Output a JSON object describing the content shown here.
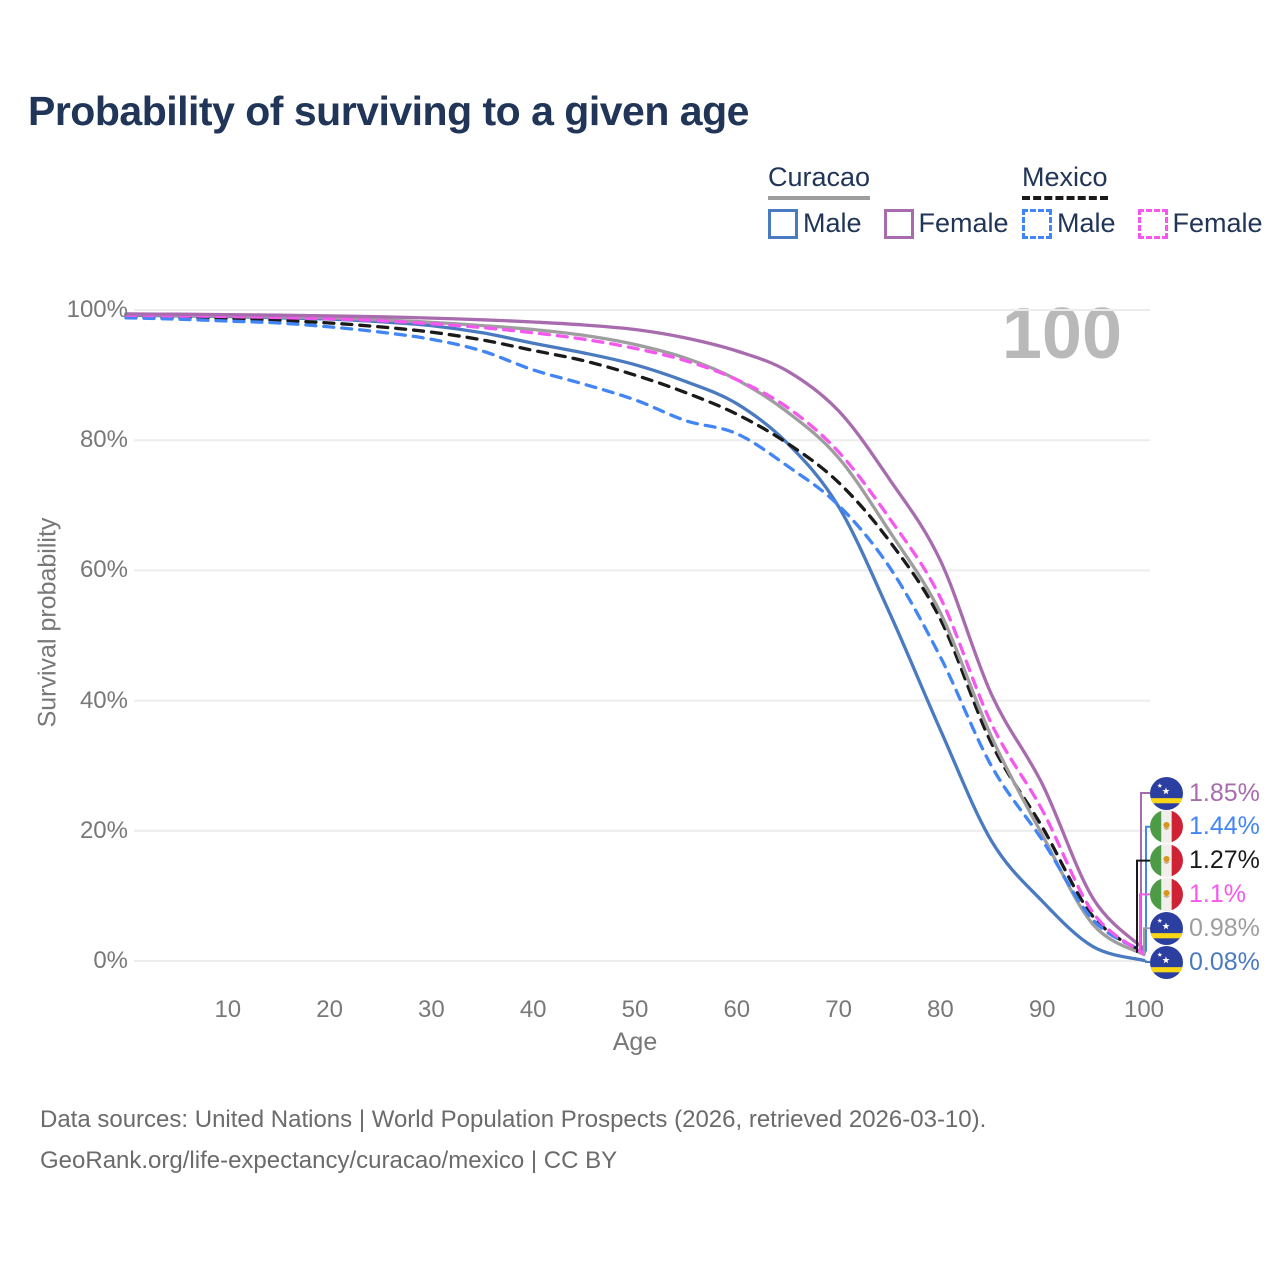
{
  "header": {
    "title": "Probability of surviving to a given age"
  },
  "legend": {
    "groups": [
      {
        "label": "Curacao",
        "underline_style": "solid",
        "underline_color": "#9e9e9e",
        "items": [
          {
            "label": "Male",
            "color": "#4a7abf",
            "dash": false
          },
          {
            "label": "Female",
            "color": "#a86bae",
            "dash": false
          }
        ]
      },
      {
        "label": "Mexico",
        "underline_style": "dashed",
        "underline_color": "#1a1a1a",
        "items": [
          {
            "label": "Male",
            "color": "#4285f4",
            "dash": true
          },
          {
            "label": "Female",
            "color": "#f558ee",
            "dash": true
          }
        ]
      }
    ]
  },
  "chart_data": {
    "type": "line",
    "title": "Probability of surviving to a given age",
    "xlabel": "Age",
    "ylabel": "Survival probability",
    "watermark": "100",
    "xlim": [
      0,
      100
    ],
    "ylim": [
      0,
      100
    ],
    "grid": "horizontal",
    "x_ticks": [
      10,
      20,
      30,
      40,
      50,
      60,
      70,
      80,
      90,
      100
    ],
    "y_ticks": [
      0,
      20,
      40,
      60,
      80,
      100
    ],
    "y_tick_labels": [
      "0%",
      "20%",
      "40%",
      "60%",
      "80%",
      "100%"
    ],
    "x": [
      0,
      5,
      10,
      15,
      20,
      25,
      30,
      35,
      40,
      45,
      50,
      55,
      60,
      65,
      70,
      75,
      80,
      85,
      90,
      95,
      100
    ],
    "series": [
      {
        "id": "curacao-male",
        "name": "Curacao Male",
        "country": "curacao",
        "color": "#4a7abf",
        "dash": false,
        "end_label": "0.08%",
        "values": [
          99.2,
          99.1,
          99.0,
          98.8,
          98.6,
          98.2,
          97.6,
          96.5,
          94.9,
          93.4,
          91.6,
          89.0,
          85.6,
          79.5,
          69.8,
          53.5,
          35.5,
          18.5,
          9.2,
          2.2,
          0.08
        ]
      },
      {
        "id": "mexico-total",
        "name": "Mexico (both sexes)",
        "country": "mexico",
        "color": "#1a1a1a",
        "dash": true,
        "end_label": "1.27%",
        "values": [
          99.0,
          98.85,
          98.7,
          98.4,
          98.0,
          97.4,
          96.6,
          95.4,
          93.8,
          92.2,
          90.0,
          87.3,
          84.0,
          79.5,
          73.5,
          64.5,
          52.5,
          33.5,
          20.6,
          6.8,
          1.27
        ]
      },
      {
        "id": "curacao-total",
        "name": "Curacao (both sexes)",
        "country": "curacao",
        "color": "#9e9e9e",
        "dash": false,
        "end_label": "0.98%",
        "values": [
          99.3,
          99.2,
          99.1,
          98.95,
          98.8,
          98.5,
          98.1,
          97.6,
          97.0,
          96.1,
          94.7,
          92.6,
          89.3,
          84.3,
          77.3,
          66.0,
          53.5,
          34.5,
          19.4,
          5.6,
          0.98
        ]
      },
      {
        "id": "mexico-male",
        "name": "Mexico Male",
        "country": "mexico",
        "color": "#4285f4",
        "dash": true,
        "end_label": "1.44%",
        "values": [
          98.8,
          98.6,
          98.3,
          98.0,
          97.4,
          96.6,
          95.5,
          93.7,
          90.8,
          88.6,
          86.2,
          83.0,
          81.0,
          76.0,
          70.0,
          60.5,
          46.7,
          30.0,
          18.6,
          6.3,
          1.44
        ]
      },
      {
        "id": "mexico-female",
        "name": "Mexico Female",
        "country": "mexico",
        "color": "#f558ee",
        "dash": true,
        "end_label": "1.1%",
        "values": [
          99.2,
          99.1,
          99.0,
          98.85,
          98.65,
          98.35,
          97.9,
          97.3,
          96.5,
          95.5,
          94.1,
          92.2,
          89.3,
          85.0,
          78.2,
          68.0,
          55.8,
          36.5,
          23.2,
          7.4,
          1.1
        ]
      },
      {
        "id": "curacao-female",
        "name": "Curacao Female",
        "country": "curacao",
        "color": "#a86bae",
        "dash": false,
        "end_label": "1.85%",
        "values": [
          99.4,
          99.35,
          99.3,
          99.2,
          99.1,
          98.95,
          98.75,
          98.5,
          98.15,
          97.7,
          97.0,
          95.7,
          93.7,
          90.6,
          84.5,
          74.0,
          61.5,
          41.0,
          27.2,
          9.6,
          1.85
        ]
      }
    ],
    "end_labels": [
      {
        "value": "1.85%",
        "color": "#a86bae",
        "country": "curacao",
        "series": "curacao-female"
      },
      {
        "value": "1.44%",
        "color": "#4285f4",
        "country": "mexico",
        "series": "mexico-male"
      },
      {
        "value": "1.27%",
        "color": "#1a1a1a",
        "country": "mexico",
        "series": "mexico-total"
      },
      {
        "value": "1.1%",
        "color": "#f558ee",
        "country": "mexico",
        "series": "mexico-female"
      },
      {
        "value": "0.98%",
        "color": "#9e9e9e",
        "country": "curacao",
        "series": "curacao-total"
      },
      {
        "value": "0.08%",
        "color": "#4a7abf",
        "country": "curacao",
        "series": "curacao-male"
      }
    ]
  },
  "footer": {
    "line1": "Data sources: United Nations | World Population Prospects (2026, retrieved 2026-03-10).",
    "line2": "GeoRank.org/life-expectancy/curacao/mexico | CC BY"
  }
}
